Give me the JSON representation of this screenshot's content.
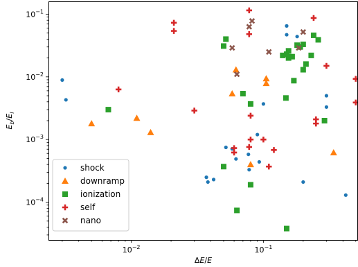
{
  "chart_data": {
    "type": "scatter",
    "xscale": "log",
    "yscale": "log",
    "xlim": [
      0.00236,
      0.52
    ],
    "ylim": [
      2.5e-05,
      0.16
    ],
    "xlabel": "ΔE/E",
    "ylabel": "E_b/E_l",
    "xticks": [
      {
        "value": 0.01,
        "mantissa": "10",
        "exp": "−2"
      },
      {
        "value": 0.1,
        "mantissa": "10",
        "exp": "−1"
      }
    ],
    "yticks": [
      {
        "value": 0.0001,
        "mantissa": "10",
        "exp": "−4"
      },
      {
        "value": 0.001,
        "mantissa": "10",
        "exp": "−3"
      },
      {
        "value": 0.01,
        "mantissa": "10",
        "exp": "−2"
      },
      {
        "value": 0.1,
        "mantissa": "10",
        "exp": "−1"
      }
    ],
    "grid": false,
    "legend_position": "lower-left",
    "series": [
      {
        "name": "shock",
        "marker": "circle",
        "color": "#1f77b4",
        "points": [
          [
            0.003,
            0.0089
          ],
          [
            0.0032,
            0.0043
          ],
          [
            0.037,
            0.00025
          ],
          [
            0.038,
            0.00021
          ],
          [
            0.042,
            0.00023
          ],
          [
            0.052,
            0.00075
          ],
          [
            0.058,
            0.00071
          ],
          [
            0.062,
            0.00049
          ],
          [
            0.077,
            0.00058
          ],
          [
            0.078,
            0.00033
          ],
          [
            0.09,
            0.0012
          ],
          [
            0.093,
            0.00044
          ],
          [
            0.1,
            0.0037
          ],
          [
            0.15,
            0.065
          ],
          [
            0.15,
            0.047
          ],
          [
            0.18,
            0.044
          ],
          [
            0.2,
            0.00021
          ],
          [
            0.3,
            0.005
          ],
          [
            0.3,
            0.0033
          ],
          [
            0.42,
            0.00013
          ]
        ]
      },
      {
        "name": "downramp",
        "marker": "triangle",
        "color": "#ff7f0e",
        "points": [
          [
            0.005,
            0.0018
          ],
          [
            0.011,
            0.0022
          ],
          [
            0.014,
            0.0013
          ],
          [
            0.058,
            0.0054
          ],
          [
            0.062,
            0.013
          ],
          [
            0.08,
            0.0004
          ],
          [
            0.105,
            0.0094
          ],
          [
            0.105,
            0.0079
          ],
          [
            0.34,
            0.00062
          ]
        ]
      },
      {
        "name": "ionization",
        "marker": "square",
        "color": "#2ca02c",
        "points": [
          [
            0.0067,
            0.003
          ],
          [
            0.05,
            0.031
          ],
          [
            0.052,
            0.04
          ],
          [
            0.05,
            0.00037
          ],
          [
            0.063,
            7.4e-05
          ],
          [
            0.07,
            0.0054
          ],
          [
            0.08,
            0.0037
          ],
          [
            0.08,
            0.00019
          ],
          [
            0.14,
            0.022
          ],
          [
            0.15,
            0.023
          ],
          [
            0.155,
            0.026
          ],
          [
            0.155,
            0.02
          ],
          [
            0.165,
            0.021
          ],
          [
            0.17,
            0.0087
          ],
          [
            0.18,
            0.032
          ],
          [
            0.19,
            0.03
          ],
          [
            0.2,
            0.033
          ],
          [
            0.2,
            0.013
          ],
          [
            0.21,
            0.016
          ],
          [
            0.23,
            0.022
          ],
          [
            0.24,
            0.046
          ],
          [
            0.26,
            0.039
          ],
          [
            0.29,
            0.002
          ],
          [
            0.148,
            0.0046
          ],
          [
            0.15,
            3.8e-05
          ]
        ]
      },
      {
        "name": "self",
        "marker": "plus",
        "color": "#d62728",
        "points": [
          [
            0.008,
            0.0063
          ],
          [
            0.021,
            0.073
          ],
          [
            0.021,
            0.054
          ],
          [
            0.03,
            0.0029
          ],
          [
            0.06,
            0.00073
          ],
          [
            0.06,
            0.00062
          ],
          [
            0.078,
            0.115
          ],
          [
            0.078,
            0.048
          ],
          [
            0.08,
            0.0024
          ],
          [
            0.08,
            0.001
          ],
          [
            0.078,
            0.00076
          ],
          [
            0.1,
            0.001
          ],
          [
            0.11,
            0.00037
          ],
          [
            0.12,
            0.00068
          ],
          [
            0.24,
            0.087
          ],
          [
            0.25,
            0.0021
          ],
          [
            0.25,
            0.0018
          ],
          [
            0.3,
            0.015
          ],
          [
            0.5,
            0.0093
          ],
          [
            0.5,
            0.0039
          ]
        ]
      },
      {
        "name": "nano",
        "marker": "x",
        "color": "#8c564b",
        "points": [
          [
            0.058,
            0.029
          ],
          [
            0.063,
            0.011
          ],
          [
            0.078,
            0.063
          ],
          [
            0.082,
            0.078
          ],
          [
            0.11,
            0.025
          ],
          [
            0.185,
            0.029
          ],
          [
            0.2,
            0.052
          ]
        ]
      }
    ]
  }
}
